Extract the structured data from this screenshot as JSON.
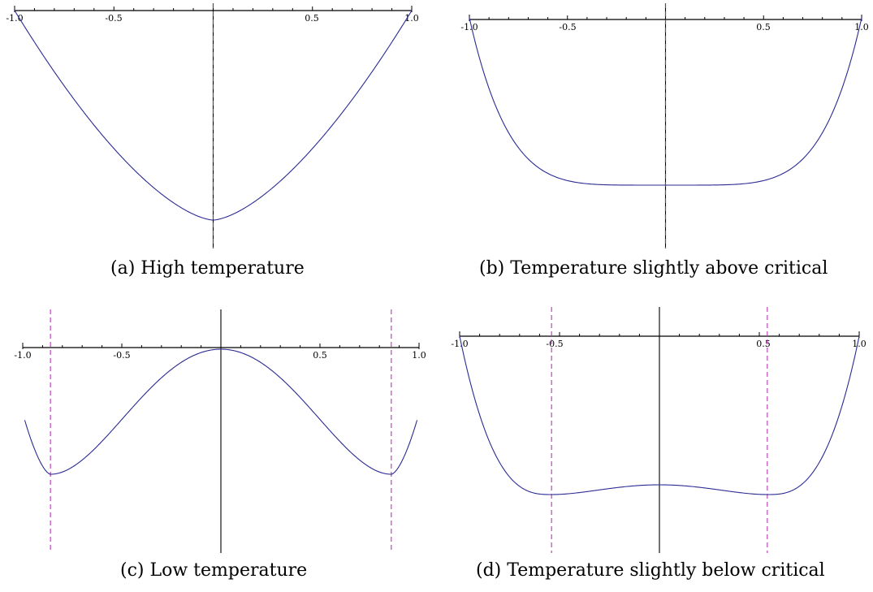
{
  "colors": {
    "curve": "#2b2a93",
    "dashed": "#b535b5",
    "axis": "#000000"
  },
  "chart_data": [
    {
      "type": "line",
      "caption": "(a) High temperature",
      "xlim": [
        -1.0,
        1.0
      ],
      "xtick_labels": [
        "-1.0",
        "-0.5",
        "0.5",
        "1.0"
      ],
      "shape": "convex",
      "minimum_x": [
        0
      ],
      "vertical_lines": [
        {
          "x": 0,
          "style": "solid+dashed"
        }
      ]
    },
    {
      "type": "line",
      "caption": "(b) Temperature slightly above critical",
      "xlim": [
        -1.0,
        1.0
      ],
      "xtick_labels": [
        "-1.0",
        "-0.5",
        "0.5",
        "1.0"
      ],
      "shape": "flat-bottom",
      "minimum_x": [
        0
      ],
      "vertical_lines": [
        {
          "x": 0,
          "style": "solid+dashed"
        }
      ]
    },
    {
      "type": "line",
      "caption": "(c) Low temperature",
      "xlim": [
        -1.0,
        1.0
      ],
      "xtick_labels": [
        "-1.0",
        "-0.5",
        "0.5",
        "1.0"
      ],
      "shape": "double-well",
      "minimum_x": [
        -0.86,
        0.86
      ],
      "vertical_lines": [
        {
          "x": 0,
          "style": "solid"
        },
        {
          "x": -0.86,
          "style": "dashed"
        },
        {
          "x": 0.86,
          "style": "dashed"
        }
      ]
    },
    {
      "type": "line",
      "caption": "(d) Temperature slightly below critical",
      "xlim": [
        -1.0,
        1.0
      ],
      "xtick_labels": [
        "-1.0",
        "-0.5",
        "0.5",
        "1.0"
      ],
      "shape": "shallow-double-well",
      "minimum_x": [
        -0.54,
        0.54
      ],
      "vertical_lines": [
        {
          "x": 0,
          "style": "solid"
        },
        {
          "x": -0.54,
          "style": "dashed"
        },
        {
          "x": 0.54,
          "style": "dashed"
        }
      ]
    }
  ]
}
